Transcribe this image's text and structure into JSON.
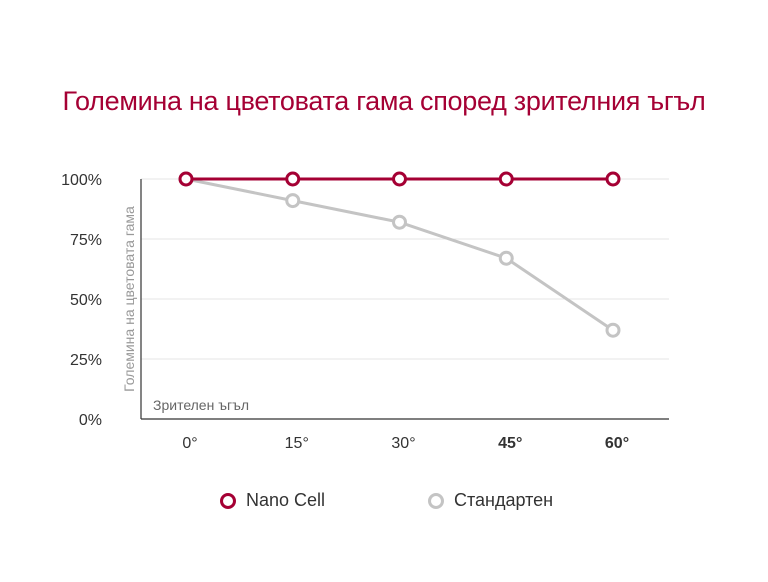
{
  "title": "Големина на цветовата гама според зрителния ъгъл",
  "chart_data": {
    "type": "line",
    "title": "Големина на цветовата гама според зрителния ъгъл",
    "xlabel": "Зрителен ъгъл",
    "ylabel": "Големина на цветовата гама",
    "categories": [
      "0°",
      "15°",
      "30°",
      "45°",
      "60°"
    ],
    "highlighted_categories": [
      "45°",
      "60°"
    ],
    "yticks": [
      "0%",
      "25%",
      "50%",
      "75%",
      "100%"
    ],
    "ylim": [
      0,
      100
    ],
    "grid": true,
    "legend_position": "bottom",
    "series": [
      {
        "name": "Nano Cell",
        "color": "#a50034",
        "values": [
          100,
          100,
          100,
          100,
          100
        ]
      },
      {
        "name": "Стандартен",
        "color": "#c4c4c4",
        "values": [
          100,
          91,
          82,
          67,
          37
        ]
      }
    ]
  }
}
